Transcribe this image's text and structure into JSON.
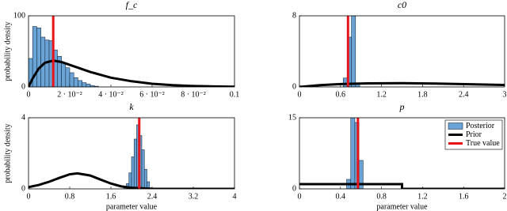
{
  "chart_data": [
    {
      "type": "histogram",
      "title": "f_c",
      "ylabel": "probability density",
      "xlim": [
        0,
        0.1
      ],
      "ylim": [
        0,
        100
      ],
      "xticks": [
        0,
        {
          "value": 0.02,
          "label": "2 · 10⁻²"
        },
        {
          "value": 0.04,
          "label": "4 · 10⁻²"
        },
        {
          "value": 0.06,
          "label": "6 · 10⁻²"
        },
        {
          "value": 0.08,
          "label": "8 · 10⁻²"
        },
        0.1
      ],
      "yticks": [
        0,
        100
      ],
      "series": [
        {
          "color": "#6aa3d5",
          "bins": [
            0,
            0.002,
            0.004,
            0.006,
            0.008,
            0.01,
            0.012,
            0.014,
            0.016,
            0.018,
            0.02,
            0.022,
            0.024,
            0.026,
            0.028,
            0.03,
            0.032,
            0.034
          ],
          "values": [
            40,
            85,
            83,
            70,
            66,
            65,
            52,
            43,
            34,
            27,
            20,
            13,
            9,
            6,
            4,
            2,
            1
          ]
        },
        {
          "color": "#000000",
          "x": [
            0,
            0.002,
            0.005,
            0.008,
            0.012,
            0.016,
            0.02,
            0.03,
            0.04,
            0.05,
            0.06,
            0.07,
            0.08,
            0.09,
            0.1
          ],
          "values": [
            0,
            12,
            26,
            34,
            37,
            35,
            31,
            21,
            13,
            8,
            4.5,
            2.5,
            1.3,
            0.7,
            0.3
          ]
        },
        {
          "color": "#e8131b",
          "values": [
            0.012
          ]
        }
      ]
    },
    {
      "type": "histogram",
      "title": "c0",
      "xlim": [
        0,
        3
      ],
      "ylim": [
        0,
        8
      ],
      "xticks": [
        0,
        0.6,
        1.2,
        1.8,
        2.4,
        3
      ],
      "yticks": [
        0,
        8
      ],
      "series": [
        {
          "color": "#6aa3d5",
          "bins": [
            0.64,
            0.7,
            0.76,
            0.82,
            0.88
          ],
          "values": [
            1,
            5.6,
            8,
            0.3
          ]
        },
        {
          "color": "#000000",
          "x": [
            0,
            0.3,
            0.6,
            1,
            1.5,
            2,
            2.5,
            3
          ],
          "values": [
            0,
            0.2,
            0.32,
            0.4,
            0.42,
            0.38,
            0.3,
            0.22
          ]
        },
        {
          "color": "#e8131b",
          "values": [
            0.71
          ]
        }
      ]
    },
    {
      "type": "histogram",
      "title": "k",
      "ylabel": "probability density",
      "xlabel": "parameter value",
      "xlim": [
        0,
        4
      ],
      "ylim": [
        0,
        4
      ],
      "xticks": [
        0,
        0.8,
        1.6,
        2.4,
        3.2,
        4
      ],
      "yticks": [
        0,
        4
      ],
      "series": [
        {
          "color": "#6aa3d5",
          "bins": [
            1.85,
            1.9,
            1.95,
            2,
            2.05,
            2.1,
            2.15,
            2.2,
            2.25,
            2.3,
            2.35
          ],
          "values": [
            0.1,
            0.3,
            0.9,
            1.8,
            2.8,
            3.6,
            3,
            2.2,
            1.1,
            0.4
          ]
        },
        {
          "color": "#000000",
          "x": [
            0,
            0.2,
            0.4,
            0.6,
            0.8,
            0.95,
            1.2,
            1.4,
            1.6,
            1.8,
            2,
            2.4,
            3,
            4
          ],
          "values": [
            0.1,
            0.22,
            0.4,
            0.62,
            0.82,
            0.87,
            0.75,
            0.52,
            0.3,
            0.14,
            0.06,
            0.005,
            0,
            0
          ]
        },
        {
          "color": "#e8131b",
          "values": [
            2.15
          ]
        }
      ]
    },
    {
      "type": "histogram",
      "title": "p",
      "xlabel": "parameter value",
      "xlim": [
        0,
        2
      ],
      "ylim": [
        0,
        15
      ],
      "xticks": [
        0,
        0.4,
        0.8,
        1.2,
        1.6,
        2
      ],
      "yticks": [
        0,
        15
      ],
      "legend": "upper right",
      "series": [
        {
          "name": "Posterior",
          "color": "#6aa3d5",
          "bins": [
            0.46,
            0.5,
            0.54,
            0.58,
            0.62
          ],
          "values": [
            2,
            15,
            14,
            6
          ]
        },
        {
          "name": "Prior",
          "color": "#000000",
          "x": [
            0,
            1,
            1,
            2
          ],
          "values": [
            1,
            1,
            0,
            0
          ]
        },
        {
          "name": "True value",
          "color": "#e8131b",
          "values": [
            0.57
          ]
        }
      ]
    }
  ]
}
